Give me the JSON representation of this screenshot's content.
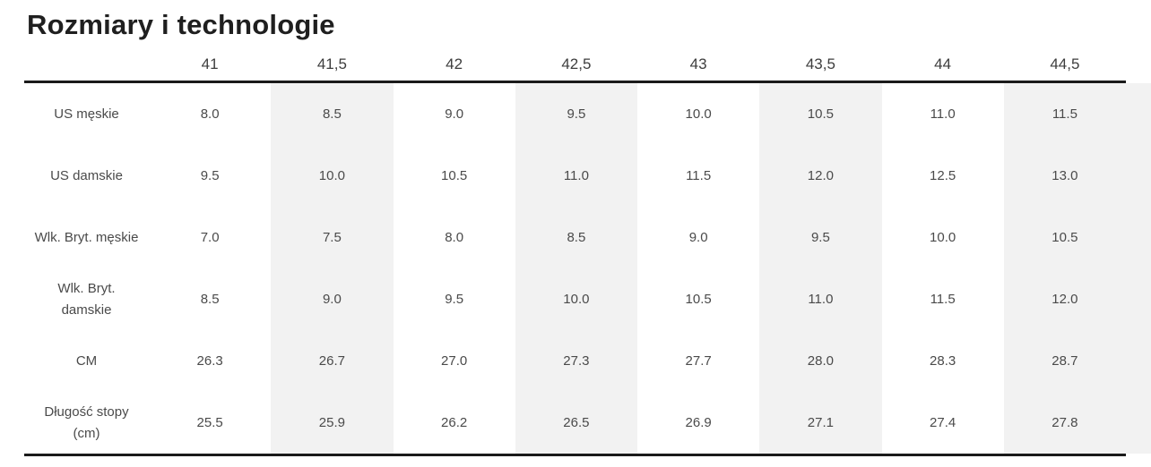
{
  "header": {
    "title": "Rozmiary i technologie"
  },
  "chart_data": {
    "type": "table",
    "title": "Rozmiary i technologie",
    "columns": [
      "41",
      "41,5",
      "42",
      "42,5",
      "43",
      "43,5",
      "44",
      "44,5"
    ],
    "rows": [
      {
        "label": "US męskie",
        "values": [
          "8.0",
          "8.5",
          "9.0",
          "9.5",
          "10.0",
          "10.5",
          "11.0",
          "11.5"
        ]
      },
      {
        "label": "US damskie",
        "values": [
          "9.5",
          "10.0",
          "10.5",
          "11.0",
          "11.5",
          "12.0",
          "12.5",
          "13.0"
        ]
      },
      {
        "label": "Wlk. Bryt. męskie",
        "values": [
          "7.0",
          "7.5",
          "8.0",
          "8.5",
          "9.0",
          "9.5",
          "10.0",
          "10.5"
        ]
      },
      {
        "label": "Wlk. Bryt.\ndamskie",
        "values": [
          "8.5",
          "9.0",
          "9.5",
          "10.0",
          "10.5",
          "11.0",
          "11.5",
          "12.0"
        ]
      },
      {
        "label": "CM",
        "values": [
          "26.3",
          "26.7",
          "27.0",
          "27.3",
          "27.7",
          "28.0",
          "28.3",
          "28.7"
        ]
      },
      {
        "label": "Długość stopy\n(cm)",
        "values": [
          "25.5",
          "25.9",
          "26.2",
          "26.5",
          "26.9",
          "27.1",
          "27.4",
          "27.8"
        ]
      }
    ],
    "layout": {
      "striped_column_indices": [
        1,
        3,
        5,
        7
      ],
      "grid": "off",
      "legend": "none"
    }
  },
  "colors": {
    "stripe": "#f2f2f2",
    "border": "#1a1a1a",
    "title_text": "#1f1f1f",
    "cell_text": "#4a4a4a",
    "header_text": "#3d3d3d",
    "background": "#ffffff"
  }
}
